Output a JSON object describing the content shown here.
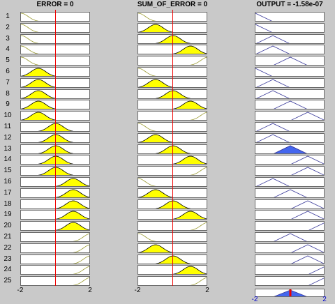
{
  "columns": {
    "error": {
      "title": "ERROR = 0"
    },
    "sum_of_error": {
      "title": "SUM_OF_ERROR = 0"
    },
    "output": {
      "title": "OUTPUT = -1.58e-07"
    }
  },
  "row_numbers": [
    "1",
    "2",
    "3",
    "4",
    "5",
    "6",
    "7",
    "8",
    "9",
    "10",
    "11",
    "12",
    "13",
    "14",
    "15",
    "16",
    "17",
    "18",
    "19",
    "20",
    "21",
    "22",
    "23",
    "24",
    "25"
  ],
  "axes": {
    "error": {
      "min_label": "-2",
      "max_label": "2"
    },
    "sum_of_error": {
      "min_label": "-2",
      "max_label": "2"
    },
    "output": {
      "min_label": "-2",
      "max_label": "2"
    }
  },
  "chart_data": {
    "type": "fuzzy-rule-viewer",
    "x_range": [
      -2,
      2
    ],
    "inputs": {
      "error": 0,
      "sum_of_error": 0
    },
    "output": -1.58e-07,
    "membership_centers": {
      "NB": -2,
      "NS": -1,
      "ZE": 0,
      "PS": 1,
      "PB": 2
    },
    "rules": [
      [
        "NB",
        "NB",
        "NB"
      ],
      [
        "NB",
        "NS",
        "NB"
      ],
      [
        "NB",
        "ZE",
        "NS"
      ],
      [
        "NB",
        "PS",
        "NS"
      ],
      [
        "NB",
        "PB",
        "ZE"
      ],
      [
        "NS",
        "NB",
        "NB"
      ],
      [
        "NS",
        "NS",
        "NS"
      ],
      [
        "NS",
        "ZE",
        "NS"
      ],
      [
        "NS",
        "PS",
        "ZE"
      ],
      [
        "NS",
        "PB",
        "PS"
      ],
      [
        "ZE",
        "NB",
        "NS"
      ],
      [
        "ZE",
        "NS",
        "NS"
      ],
      [
        "ZE",
        "ZE",
        "ZE"
      ],
      [
        "ZE",
        "PS",
        "PS"
      ],
      [
        "ZE",
        "PB",
        "PS"
      ],
      [
        "PS",
        "NB",
        "NS"
      ],
      [
        "PS",
        "NS",
        "ZE"
      ],
      [
        "PS",
        "ZE",
        "PS"
      ],
      [
        "PS",
        "PS",
        "PS"
      ],
      [
        "PS",
        "PB",
        "PB"
      ],
      [
        "PB",
        "NB",
        "ZE"
      ],
      [
        "PB",
        "NS",
        "PS"
      ],
      [
        "PB",
        "ZE",
        "PS"
      ],
      [
        "PB",
        "PS",
        "PB"
      ],
      [
        "PB",
        "PB",
        "PB"
      ]
    ],
    "rule_firing": [
      0,
      0,
      0,
      0,
      0,
      0,
      0,
      0,
      0,
      0,
      0,
      0,
      1,
      0,
      0,
      0,
      0,
      0,
      0,
      0,
      0,
      0,
      0,
      0,
      0
    ]
  },
  "colors": {
    "input_line": "#9a9a30",
    "input_fill": "#ffff00",
    "output_line": "#3a3a9a",
    "output_fill": "#4466ee",
    "marker": "#ee0000",
    "axis_label_output": "#0000cc"
  }
}
